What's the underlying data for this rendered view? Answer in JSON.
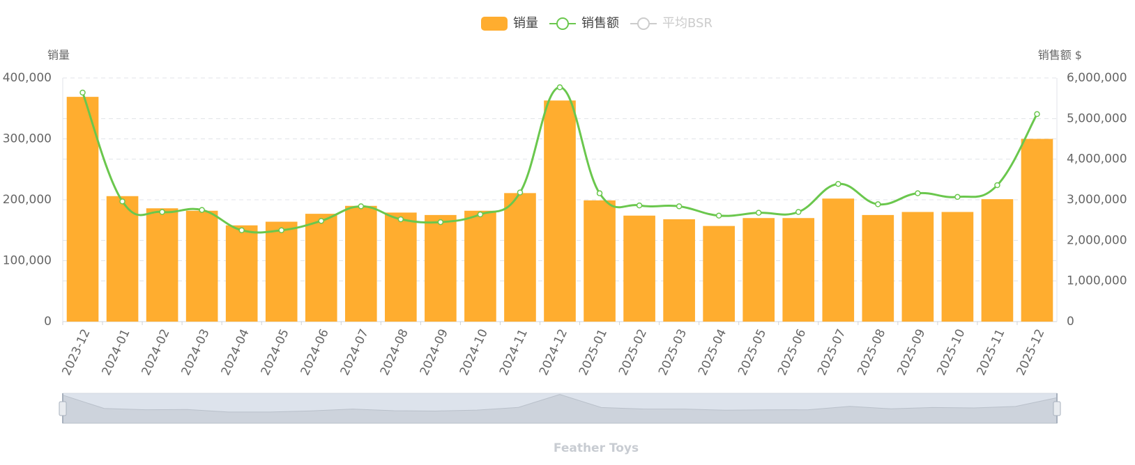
{
  "chart_data": {
    "type": "bar_line",
    "title": "Feather Toys",
    "y_label": "销量",
    "y2_label": "销售额 $",
    "categories": [
      "2023-12",
      "2024-01",
      "2024-02",
      "2024-03",
      "2024-04",
      "2024-05",
      "2024-06",
      "2024-07",
      "2024-08",
      "2024-09",
      "2024-10",
      "2024-11",
      "2024-12",
      "2025-01",
      "2025-02",
      "2025-03",
      "2025-04",
      "2025-05",
      "2025-06",
      "2025-07",
      "2025-08",
      "2025-09",
      "2025-10",
      "2025-11",
      "2025-12"
    ],
    "series": [
      {
        "name": "销量",
        "color": "#ffad2f",
        "type": "bar",
        "values": [
          369000,
          206000,
          186000,
          182000,
          158000,
          164000,
          177000,
          190000,
          179000,
          175000,
          182000,
          211000,
          363000,
          199000,
          174000,
          168000,
          157000,
          170000,
          170000,
          202000,
          175000,
          180000,
          180000,
          201000,
          300000
        ]
      },
      {
        "name": "销售额",
        "color": "#6ac74d",
        "type": "line",
        "axis": "y2",
        "values": [
          5640000,
          2960000,
          2700000,
          2750000,
          2250000,
          2250000,
          2480000,
          2840000,
          2520000,
          2450000,
          2640000,
          3180000,
          5770000,
          3160000,
          2860000,
          2840000,
          2610000,
          2680000,
          2700000,
          3390000,
          2890000,
          3160000,
          3070000,
          3360000,
          5110000
        ]
      },
      {
        "name": "平均BSR",
        "color": "#cccccc",
        "type": "line",
        "hidden": true
      }
    ],
    "ylim": [
      0,
      400000
    ],
    "yticks": [
      0,
      {
        "value": 100000,
        "label": "100,000"
      },
      {
        "value": 200000,
        "label": "200,000"
      },
      {
        "value": 300000,
        "label": "300,000"
      },
      {
        "value": 400000,
        "label": "400,000"
      }
    ],
    "y2lim": [
      0,
      6000000
    ],
    "y2ticks": [
      0,
      {
        "value": 1000000,
        "label": "1,000,000"
      },
      {
        "value": 2000000,
        "label": "2,000,000"
      },
      {
        "value": 3000000,
        "label": "3,000,000"
      },
      {
        "value": 4000000,
        "label": "4,000,000"
      },
      {
        "value": 5000000,
        "label": "5,000,000"
      },
      {
        "value": 6000000,
        "label": "6,000,000"
      }
    ],
    "grid": true,
    "legend": "top"
  }
}
